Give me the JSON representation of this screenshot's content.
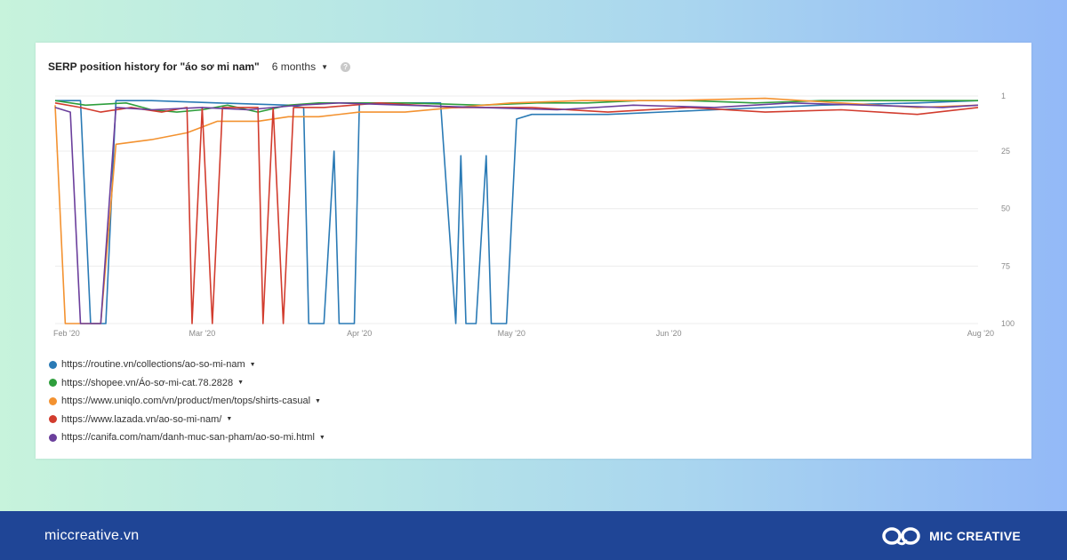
{
  "chart_data": {
    "type": "line",
    "title": "SERP position history for \"áo sơ mi nam\"",
    "period": "6 months",
    "help": "?",
    "y_reversed": true,
    "ylim": [
      1,
      100
    ],
    "grid": true,
    "legend_position": "bottom-left",
    "y_ticks": [
      {
        "value": 1,
        "label": "1"
      },
      {
        "value": 25,
        "label": "25"
      },
      {
        "value": 50,
        "label": "50"
      },
      {
        "value": 75,
        "label": "75"
      },
      {
        "value": 100,
        "label": "100"
      }
    ],
    "x_ticks": [
      {
        "value": "2020-02-01",
        "label": "Feb '20"
      },
      {
        "value": "2020-03-01",
        "label": "Mar '20"
      },
      {
        "value": "2020-04-01",
        "label": "Apr '20"
      },
      {
        "value": "2020-05-01",
        "label": "May '20"
      },
      {
        "value": "2020-06-01",
        "label": "Jun '20"
      },
      {
        "value": "2020-08-01",
        "label": "Aug '20"
      }
    ],
    "series": [
      {
        "name": "https://routine.vn/collections/ao-so-mi-nam",
        "color": "#2a7ab5",
        "points": [
          [
            "2020-02-01",
            3
          ],
          [
            "2020-02-04",
            3
          ],
          [
            "2020-02-06",
            3
          ],
          [
            "2020-02-08",
            100
          ],
          [
            "2020-02-11",
            100
          ],
          [
            "2020-02-13",
            3
          ],
          [
            "2020-02-20",
            3
          ],
          [
            "2020-03-04",
            4
          ],
          [
            "2020-03-18",
            5
          ],
          [
            "2020-03-21",
            6
          ],
          [
            "2020-03-22",
            100
          ],
          [
            "2020-03-25",
            100
          ],
          [
            "2020-03-27",
            25
          ],
          [
            "2020-03-28",
            100
          ],
          [
            "2020-03-31",
            100
          ],
          [
            "2020-04-01",
            4
          ],
          [
            "2020-04-17",
            4
          ],
          [
            "2020-04-20",
            100
          ],
          [
            "2020-04-21",
            27
          ],
          [
            "2020-04-22",
            100
          ],
          [
            "2020-04-24",
            100
          ],
          [
            "2020-04-26",
            27
          ],
          [
            "2020-04-27",
            100
          ],
          [
            "2020-04-30",
            100
          ],
          [
            "2020-05-02",
            11
          ],
          [
            "2020-05-05",
            9
          ],
          [
            "2020-05-20",
            9
          ],
          [
            "2020-06-10",
            7
          ],
          [
            "2020-07-01",
            5
          ],
          [
            "2020-07-20",
            4
          ],
          [
            "2020-08-01",
            3
          ]
        ]
      },
      {
        "name": "https://shopee.vn/Áo-sơ-mi-cat.78.2828",
        "color": "#2e9e3c",
        "points": [
          [
            "2020-02-01",
            3
          ],
          [
            "2020-02-07",
            5
          ],
          [
            "2020-02-15",
            4
          ],
          [
            "2020-02-20",
            7
          ],
          [
            "2020-02-25",
            8
          ],
          [
            "2020-03-01",
            7
          ],
          [
            "2020-03-06",
            5
          ],
          [
            "2020-03-12",
            8
          ],
          [
            "2020-03-18",
            5
          ],
          [
            "2020-03-24",
            4
          ],
          [
            "2020-03-31",
            4
          ],
          [
            "2020-04-10",
            4
          ],
          [
            "2020-04-25",
            5
          ],
          [
            "2020-05-06",
            4
          ],
          [
            "2020-05-16",
            4
          ],
          [
            "2020-05-26",
            3
          ],
          [
            "2020-06-05",
            3
          ],
          [
            "2020-06-18",
            4
          ],
          [
            "2020-07-01",
            3
          ],
          [
            "2020-07-15",
            3
          ],
          [
            "2020-08-01",
            3
          ]
        ]
      },
      {
        "name": "https://www.uniqlo.com/vn/product/men/tops/shirts-casual",
        "color": "#f39230",
        "points": [
          [
            "2020-02-01",
            5
          ],
          [
            "2020-02-03",
            100
          ],
          [
            "2020-02-10",
            100
          ],
          [
            "2020-02-13",
            22
          ],
          [
            "2020-02-20",
            20
          ],
          [
            "2020-02-27",
            17
          ],
          [
            "2020-03-04",
            12
          ],
          [
            "2020-03-12",
            12
          ],
          [
            "2020-03-18",
            10
          ],
          [
            "2020-03-24",
            10
          ],
          [
            "2020-04-01",
            8
          ],
          [
            "2020-04-10",
            8
          ],
          [
            "2020-04-20",
            6
          ],
          [
            "2020-05-01",
            4
          ],
          [
            "2020-05-15",
            3
          ],
          [
            "2020-06-01",
            3
          ],
          [
            "2020-06-20",
            2
          ],
          [
            "2020-07-05",
            4
          ],
          [
            "2020-07-20",
            6
          ],
          [
            "2020-08-01",
            5
          ]
        ]
      },
      {
        "name": "https://www.lazada.vn/ao-so-mi-nam/",
        "color": "#d23c2e",
        "points": [
          [
            "2020-02-01",
            4
          ],
          [
            "2020-02-06",
            6
          ],
          [
            "2020-02-10",
            8
          ],
          [
            "2020-02-16",
            6
          ],
          [
            "2020-02-22",
            8
          ],
          [
            "2020-02-27",
            6
          ],
          [
            "2020-02-28",
            100
          ],
          [
            "2020-03-01",
            6
          ],
          [
            "2020-03-03",
            100
          ],
          [
            "2020-03-05",
            6
          ],
          [
            "2020-03-08",
            6
          ],
          [
            "2020-03-12",
            6
          ],
          [
            "2020-03-13",
            100
          ],
          [
            "2020-03-15",
            6
          ],
          [
            "2020-03-17",
            100
          ],
          [
            "2020-03-19",
            6
          ],
          [
            "2020-03-25",
            6
          ],
          [
            "2020-04-05",
            4
          ],
          [
            "2020-04-20",
            6
          ],
          [
            "2020-05-05",
            6
          ],
          [
            "2020-05-20",
            8
          ],
          [
            "2020-06-05",
            6
          ],
          [
            "2020-06-20",
            8
          ],
          [
            "2020-07-05",
            7
          ],
          [
            "2020-07-20",
            9
          ],
          [
            "2020-08-01",
            6
          ]
        ]
      },
      {
        "name": "https://canifa.com/nam/danh-muc-san-pham/ao-so-mi.html",
        "color": "#6b3f9c",
        "points": [
          [
            "2020-02-01",
            6
          ],
          [
            "2020-02-04",
            8
          ],
          [
            "2020-02-06",
            100
          ],
          [
            "2020-02-10",
            100
          ],
          [
            "2020-02-13",
            6
          ],
          [
            "2020-02-20",
            7
          ],
          [
            "2020-03-01",
            6
          ],
          [
            "2020-03-10",
            7
          ],
          [
            "2020-03-20",
            5
          ],
          [
            "2020-03-28",
            4
          ],
          [
            "2020-04-10",
            5
          ],
          [
            "2020-04-25",
            6
          ],
          [
            "2020-05-10",
            7
          ],
          [
            "2020-05-25",
            5
          ],
          [
            "2020-06-10",
            6
          ],
          [
            "2020-06-25",
            4
          ],
          [
            "2020-07-10",
            5
          ],
          [
            "2020-07-25",
            6
          ],
          [
            "2020-08-01",
            5
          ]
        ]
      }
    ]
  },
  "footer": {
    "site": "miccreative.vn",
    "brand": "MIC CREATIVE",
    "bg_color": "#1f4596"
  }
}
